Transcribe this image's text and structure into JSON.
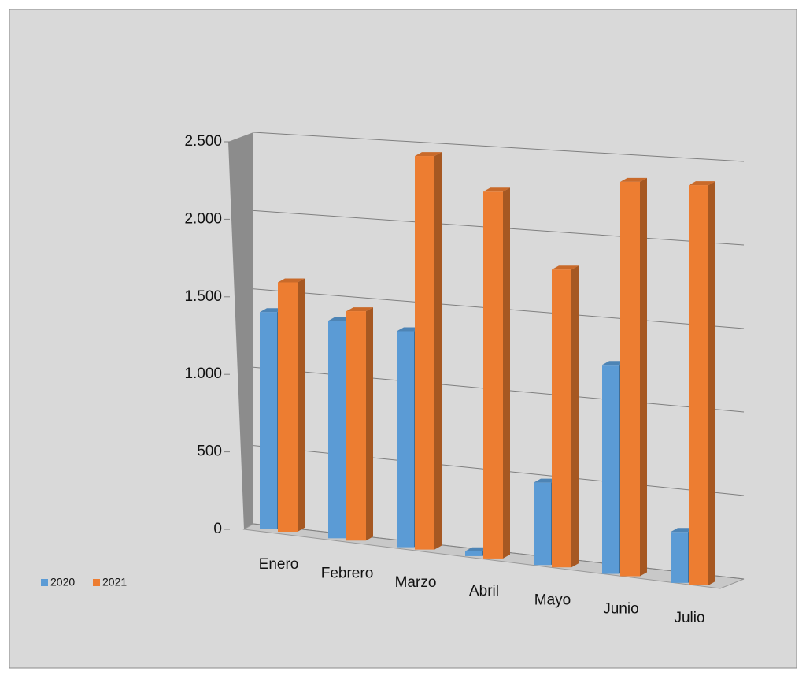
{
  "chart_data": {
    "type": "bar3d",
    "categories": [
      "Enero",
      "Febrero",
      "Marzo",
      "Abril",
      "Mayo",
      "Junio",
      "Julio"
    ],
    "series": [
      {
        "name": "2020",
        "color": "#5b9bd5",
        "values": [
          1400,
          1380,
          1350,
          30,
          500,
          1250,
          300
        ]
      },
      {
        "name": "2021",
        "color": "#ed7d31",
        "values": [
          1600,
          1450,
          2450,
          2250,
          1800,
          2350,
          2350
        ]
      }
    ],
    "ylim": [
      0,
      2500
    ],
    "yticks": [
      0,
      500,
      {
        "value": 1000,
        "label": "1.000"
      },
      {
        "value": 1500,
        "label": "1.500"
      },
      {
        "value": 2000,
        "label": "2.000"
      },
      {
        "value": 2500,
        "label": "2.500"
      }
    ],
    "grid": true,
    "legend": "bottom-left"
  }
}
